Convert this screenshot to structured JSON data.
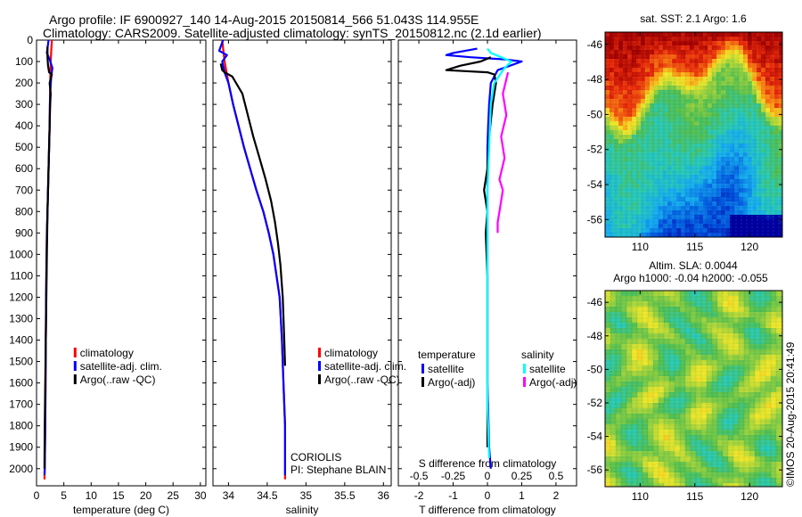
{
  "header": {
    "title_line1": "Argo profile: IF 6900927_140 14-Aug-2015 20150814_566 51.043S 114.955E",
    "title_line2": "Climatology: CARS2009. Satellite-adjusted climatology: synTS_20150812.nc (2.1d earlier)"
  },
  "chart_data": [
    {
      "type": "line",
      "panel": "temperature",
      "xlabel": "temperature (deg C)",
      "ylabel": "",
      "xlim": [
        0,
        31
      ],
      "ylim": [
        2080,
        0
      ],
      "xticks": [
        0,
        5,
        10,
        15,
        20,
        25,
        30
      ],
      "yticks": [
        0,
        100,
        200,
        300,
        400,
        500,
        600,
        700,
        800,
        900,
        1000,
        1100,
        1200,
        1300,
        1400,
        1500,
        1600,
        1700,
        1800,
        1900,
        2000
      ],
      "legend": {
        "position": "lower-right",
        "entries": [
          "climatology",
          "satellite-adj. clim.",
          "Argo(..raw -QC)"
        ]
      },
      "series": [
        {
          "name": "climatology",
          "color": "#ff0000",
          "x": [
            2.8,
            2.7,
            2.6,
            2.55,
            2.5,
            2.45,
            2.4,
            2.3,
            2.2,
            2.1,
            2.0,
            1.9,
            1.85,
            1.8,
            1.75,
            1.7,
            1.65,
            1.6,
            1.55,
            1.5,
            1.45
          ],
          "y": [
            0,
            50,
            100,
            150,
            200,
            300,
            400,
            500,
            600,
            700,
            800,
            900,
            1000,
            1100,
            1200,
            1400,
            1600,
            1800,
            1900,
            2000,
            2050
          ]
        },
        {
          "name": "satellite-adj. clim.",
          "color": "#0000ff",
          "x": [
            2.2,
            1.9,
            2.4,
            2.9,
            2.7,
            2.5,
            2.45,
            2.4,
            2.3,
            2.2,
            2.1,
            2.0,
            1.9,
            1.85,
            1.8,
            1.75,
            1.7,
            1.65,
            1.6,
            1.55,
            1.5,
            1.45
          ],
          "y": [
            0,
            60,
            90,
            130,
            170,
            250,
            300,
            400,
            500,
            600,
            700,
            800,
            900,
            1000,
            1100,
            1200,
            1400,
            1600,
            1800,
            1900,
            2000,
            2030
          ]
        },
        {
          "name": "Argo(..raw -QC)",
          "color": "#000000",
          "x": [
            2.0,
            2.0,
            2.1,
            2.3,
            2.8,
            2.4,
            2.6,
            2.5,
            2.4,
            2.3,
            2.2,
            2.1,
            2.0,
            1.9,
            1.8,
            1.7,
            1.6,
            1.5,
            1.45
          ],
          "y": [
            30,
            80,
            120,
            150,
            160,
            200,
            250,
            300,
            400,
            500,
            600,
            700,
            800,
            1000,
            1200,
            1400,
            1600,
            1800,
            2000
          ]
        }
      ]
    },
    {
      "type": "line",
      "panel": "salinity",
      "xlabel": "salinity",
      "ylabel": "",
      "xlim": [
        33.8,
        36.1
      ],
      "ylim": [
        2080,
        0
      ],
      "xticks": [
        34,
        34.5,
        35,
        35.5,
        36
      ],
      "xticklabels": [
        "34",
        "34.5",
        "35",
        "35.5",
        "36"
      ],
      "legend": {
        "position": "lower-right",
        "entries": [
          "climatology",
          "satellite-adj. clim.",
          "Argo(..raw -QC)"
        ]
      },
      "annotations": [
        "CORIOLIS",
        "PI: Stephane BLAIN"
      ],
      "series": [
        {
          "name": "climatology",
          "color": "#ff0000",
          "x": [
            33.92,
            33.95,
            34.0,
            34.06,
            34.13,
            34.2,
            34.28,
            34.36,
            34.45,
            34.52,
            34.58,
            34.62,
            34.66,
            34.69,
            34.71,
            34.73,
            34.73
          ],
          "y": [
            0,
            100,
            200,
            300,
            400,
            500,
            600,
            700,
            800,
            900,
            1000,
            1100,
            1200,
            1400,
            1600,
            1800,
            2050
          ]
        },
        {
          "name": "satellite-adj. clim.",
          "color": "#0000ff",
          "x": [
            33.93,
            33.88,
            33.98,
            33.92,
            33.95,
            34.0,
            34.06,
            34.13,
            34.2,
            34.28,
            34.36,
            34.45,
            34.52,
            34.58,
            34.62,
            34.66,
            34.69,
            34.71,
            34.73,
            34.73
          ],
          "y": [
            0,
            50,
            70,
            100,
            150,
            200,
            300,
            400,
            500,
            600,
            700,
            800,
            900,
            1000,
            1100,
            1200,
            1400,
            1600,
            1800,
            2030
          ]
        },
        {
          "name": "Argo(..raw -QC)",
          "color": "#000000",
          "x": [
            33.9,
            33.92,
            33.95,
            34.05,
            34.18,
            34.25,
            34.32,
            34.4,
            34.48,
            34.55,
            34.6,
            34.64,
            34.67,
            34.7,
            34.72,
            34.73
          ],
          "y": [
            110,
            140,
            150,
            170,
            250,
            350,
            450,
            550,
            650,
            750,
            850,
            950,
            1050,
            1200,
            1400,
            1520
          ]
        }
      ]
    },
    {
      "type": "line",
      "panel": "differences",
      "xlabel": "T difference from climatology",
      "xlabel_top": "S difference from climatology",
      "xlim": [
        -2.6,
        2.6
      ],
      "ylim": [
        2080,
        0
      ],
      "xticks": [
        -2,
        -1,
        0,
        1,
        2
      ],
      "xticks_top": [
        -0.5,
        -0.25,
        0,
        0.25,
        0.5
      ],
      "legend": {
        "position": "lower-center",
        "groups": [
          {
            "heading": "temperature",
            "entries": [
              "satellite",
              "Argo(-adj)"
            ]
          },
          {
            "heading": "salinity",
            "entries": [
              "satellite",
              "Argo(-adj)"
            ]
          }
        ]
      },
      "series": [
        {
          "name": "temperature satellite",
          "color": "#0000ff",
          "x": [
            -0.3,
            -1.0,
            -1.2,
            -0.5,
            0.5,
            1.0,
            0.3,
            0.1,
            0.05,
            0.02,
            0.0,
            0.0,
            0.0,
            0.0,
            0.0,
            0.0,
            0.05,
            0.1
          ],
          "y": [
            40,
            60,
            70,
            80,
            90,
            100,
            140,
            200,
            300,
            400,
            500,
            700,
            900,
            1100,
            1300,
            1600,
            1900,
            2000
          ]
        },
        {
          "name": "temperature Argo(-adj)",
          "color": "#000000",
          "x": [
            0.1,
            -0.2,
            -0.8,
            -1.2,
            0.0,
            0.2,
            0.25,
            0.15,
            0.05,
            0.0,
            -0.1,
            0.0,
            -0.05,
            0.0,
            0.0,
            0.0,
            0.0,
            0.0
          ],
          "y": [
            80,
            100,
            120,
            140,
            150,
            160,
            200,
            300,
            450,
            600,
            700,
            800,
            900,
            1100,
            1300,
            1600,
            1800,
            1900
          ]
        },
        {
          "name": "salinity satellite",
          "color": "#00ffff",
          "x": [
            0.0,
            0.1,
            0.4,
            0.7,
            0.5,
            0.2,
            0.1,
            0.05,
            0.0,
            0.0,
            0.0,
            0.0,
            0.0,
            0.05
          ],
          "y": [
            40,
            60,
            80,
            100,
            130,
            200,
            300,
            500,
            700,
            900,
            1100,
            1400,
            1700,
            1950
          ]
        },
        {
          "name": "salinity Argo(-adj)",
          "color": "#ff00ff",
          "x": [
            0.6,
            0.45,
            0.55,
            0.4,
            0.5,
            0.35,
            0.45,
            0.4,
            0.35,
            0.3,
            0.3
          ],
          "y": [
            150,
            250,
            350,
            450,
            550,
            650,
            700,
            750,
            800,
            850,
            900
          ]
        }
      ]
    },
    {
      "type": "heatmap",
      "panel": "sst_map",
      "title": "sat. SST: 2.1  Argo: 1.6",
      "xlim": [
        106.8,
        123
      ],
      "ylim": [
        -57,
        -45.3
      ],
      "xticks": [
        110,
        115,
        120
      ],
      "yticks": [
        -46,
        -48,
        -50,
        -52,
        -54,
        -56
      ]
    },
    {
      "type": "heatmap",
      "panel": "sla_map",
      "title": "Altim. SLA: 0.0044",
      "subtitle": "Argo h1000: -0.04 h2000: -0.055",
      "xlim": [
        106.8,
        123
      ],
      "ylim": [
        -57,
        -45.3
      ],
      "xticks": [
        110,
        115,
        120
      ],
      "yticks": [
        -46,
        -48,
        -50,
        -52,
        -54,
        -56
      ]
    }
  ],
  "footer": {
    "stamp": "©IMOS 20-Aug-2015 20:41:49"
  }
}
